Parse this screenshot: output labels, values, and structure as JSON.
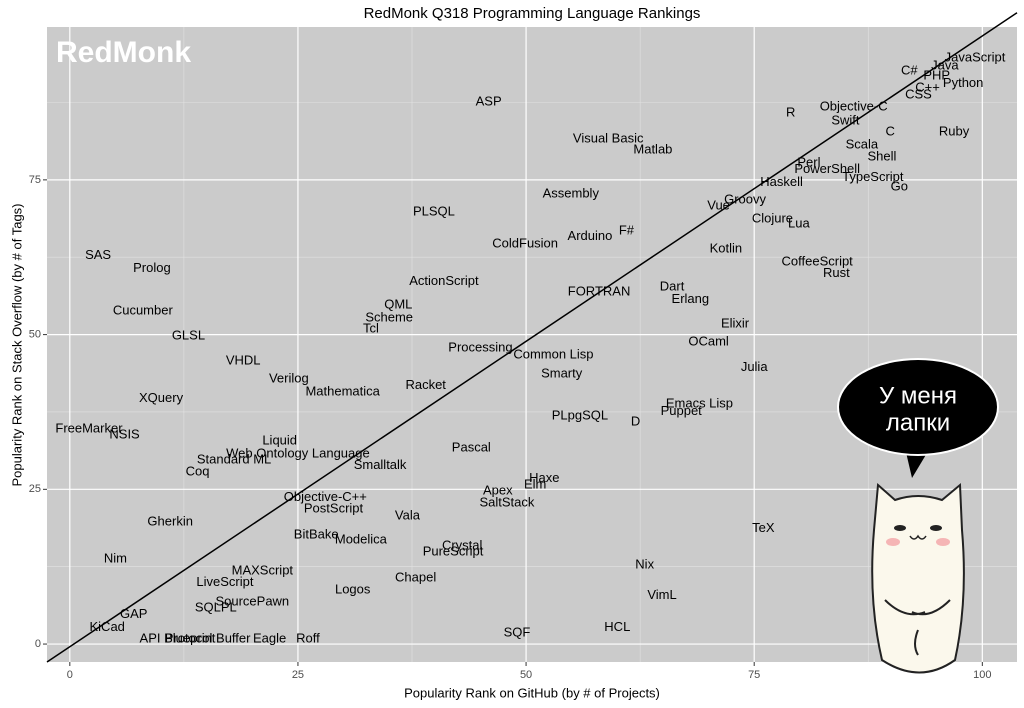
{
  "chart_data": {
    "type": "scatter",
    "title": "RedMonk Q318 Programming Language Rankings",
    "logo": "RedMonk",
    "xlabel": "Popularity Rank on GitHub (by # of Projects)",
    "ylabel": "Popularity Rank on Stack Overflow (by # of Tags)",
    "sticker_text": [
      "У меня",
      "лапки"
    ],
    "xlim": [
      -2.5,
      103.8
    ],
    "ylim": [
      -2.9,
      99.7
    ],
    "xticks": [
      0,
      25,
      50,
      75,
      100
    ],
    "yticks": [
      0,
      25,
      50,
      75
    ],
    "xminor": [
      12.5,
      37.5,
      62.5,
      87.5
    ],
    "yminor": [
      12.5,
      37.5,
      62.5,
      87.5
    ],
    "grid": true,
    "fit_line": {
      "x": [
        -2.5,
        103.8
      ],
      "y": [
        -2.9,
        102.0
      ]
    },
    "labels": [
      "JavaScript",
      "Java",
      "C#",
      "PHP",
      "C++",
      "Python",
      "CSS",
      "R",
      "Objective-C",
      "Swift",
      "Ruby",
      "C",
      "Scala",
      "Shell",
      "Perl",
      "PowerShell",
      "TypeScript",
      "Haskell",
      "Go",
      "ASP",
      "Visual Basic",
      "Matlab",
      "Assembly",
      "Groovy",
      "Vue",
      "PLSQL",
      "Clojure",
      "Lua",
      "F#",
      "Arduino",
      "ColdFusion",
      "Kotlin",
      "SAS",
      "Prolog",
      "CoffeeScript",
      "Rust",
      "ActionScript",
      "Dart",
      "FORTRAN",
      "Erlang",
      "QML",
      "Cucumber",
      "Scheme",
      "Elixir",
      "Tcl",
      "GLSL",
      "OCaml",
      "Processing",
      "Common Lisp",
      "VHDL",
      "Julia",
      "Smarty",
      "Verilog",
      "Racket",
      "Mathematica",
      "XQuery",
      "Emacs Lisp",
      "Puppet",
      "PLpgSQL",
      "D",
      "FreeMarker",
      "NSIS",
      "Liquid",
      "Pascal",
      "Web Ontology Language",
      "Standard ML",
      "Smalltalk",
      "Coq",
      "Haxe",
      "Elm",
      "Apex",
      "Objective-C++",
      "SaltStack",
      "PostScript",
      "Vala",
      "Gherkin",
      "TeX",
      "BitBake",
      "Modelica",
      "Crystal",
      "PureScript",
      "Nim",
      "Nix",
      "MAXScript",
      "Chapel",
      "LiveScript",
      "Logos",
      "VimL",
      "SourcePawn",
      "SQLPL",
      "GAP",
      "HCL",
      "KiCad",
      "SQF",
      "API Blueprint",
      "Protocol Buffer",
      "Eagle",
      "Roff"
    ],
    "x": [
      99.2,
      95.9,
      92.0,
      95.0,
      94.0,
      97.9,
      93.0,
      79.0,
      85.9,
      85.0,
      96.9,
      89.9,
      86.8,
      89.0,
      81.0,
      83.0,
      88.0,
      78.0,
      90.9,
      45.9,
      59.0,
      63.9,
      54.9,
      74.0,
      71.1,
      39.9,
      77.0,
      79.9,
      61.0,
      57.0,
      49.9,
      71.9,
      3.1,
      9.0,
      81.9,
      84.0,
      41.0,
      66.0,
      58.0,
      68.0,
      36.0,
      8.0,
      35.0,
      72.9,
      33.0,
      13.0,
      70.0,
      45.0,
      53.0,
      19.0,
      75.0,
      53.9,
      24.0,
      39.0,
      29.9,
      10.0,
      69.0,
      67.0,
      55.9,
      62.0,
      2.1,
      6.0,
      23.0,
      44.0,
      25.0,
      18.0,
      34.0,
      14.0,
      52.0,
      51.0,
      46.9,
      28.0,
      47.9,
      28.9,
      37.0,
      11.0,
      76.0,
      27.0,
      31.9,
      43.0,
      42.0,
      5.0,
      63.0,
      21.1,
      37.9,
      17.0,
      31.0,
      64.9,
      20.0,
      16.0,
      7.0,
      60.0,
      4.1,
      49.0,
      11.8,
      15.1,
      21.9,
      26.1
    ],
    "y": [
      94.7,
      93.4,
      92.6,
      91.8,
      89.8,
      90.6,
      88.7,
      85.8,
      86.8,
      84.5,
      82.7,
      82.7,
      80.6,
      78.7,
      77.7,
      76.7,
      75.4,
      74.6,
      73.8,
      87.6,
      81.6,
      79.8,
      72.7,
      71.7,
      70.8,
      69.8,
      68.7,
      67.9,
      66.7,
      65.8,
      64.6,
      63.8,
      62.8,
      60.7,
      61.7,
      59.9,
      58.6,
      57.7,
      56.9,
      55.7,
      54.8,
      53.8,
      52.7,
      51.7,
      50.9,
      49.8,
      48.8,
      47.8,
      46.7,
      45.7,
      44.7,
      43.6,
      42.8,
      41.8,
      40.7,
      39.7,
      38.8,
      37.6,
      36.8,
      35.9,
      34.7,
      33.8,
      32.8,
      31.7,
      30.7,
      29.7,
      28.8,
      27.8,
      26.7,
      25.7,
      24.7,
      23.7,
      22.8,
      21.8,
      20.7,
      19.7,
      18.7,
      17.6,
      16.8,
      15.8,
      14.9,
      13.7,
      12.8,
      11.8,
      10.7,
      9.9,
      8.7,
      7.8,
      6.8,
      5.8,
      4.8,
      2.7,
      2.7,
      1.8,
      0.8,
      0.8,
      0.8,
      0.8
    ]
  }
}
